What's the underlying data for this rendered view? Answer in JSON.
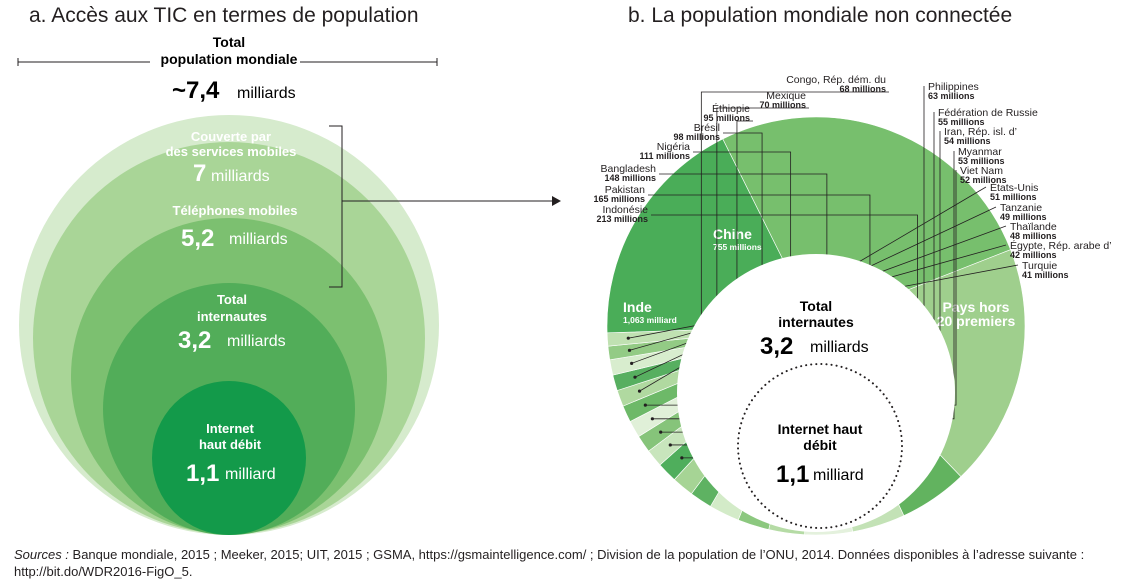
{
  "panel_a": {
    "title": "a. Accès aux TIC en termes de population",
    "total_label_1": "Total",
    "total_label_2": "population mondiale",
    "total_value": "~7,4",
    "total_unit": "milliards",
    "colors": [
      "#d6ebcd",
      "#a9d597",
      "#7cc070",
      "#52ad59",
      "#139a4a"
    ]
  },
  "panel_b": {
    "title": "b. La population mondiale non connectée",
    "center_label_1": "Total",
    "center_label_2": "internautes",
    "center_value": "3,2",
    "center_unit": "milliards",
    "inner_label_1": "Internet haut",
    "inner_label_2": "débit",
    "inner_value": "1,1",
    "inner_unit": "milliard"
  },
  "sources": {
    "label": "Sources :",
    "text": " Banque mondiale, 2015 ; Meeker, 2015; UIT, 2015 ; GSMA, https://gsmaintelligence.com/ ; Division de la population de l’ONU, 2014. Données disponibles à l’adresse suivante : http://bit.do/WDR2016-FigO_5."
  },
  "chart_data": [
    {
      "type": "nested-circles",
      "title": "a. Accès aux TIC en termes de population",
      "total": {
        "label": "Total population mondiale",
        "value": 7.4,
        "value_text": "~7,4",
        "unit": "milliards"
      },
      "levels": [
        {
          "name": "Couverte par des services mobiles",
          "value": 7,
          "value_text": "7",
          "unit": "milliards"
        },
        {
          "name": "Téléphones mobiles",
          "value": 5.2,
          "value_text": "5,2",
          "unit": "milliards"
        },
        {
          "name": "Total internautes",
          "value": 3.2,
          "value_text": "3,2",
          "unit": "milliards"
        },
        {
          "name": "Internet haut débit",
          "value": 1.1,
          "value_text": "1,1",
          "unit": "milliard"
        }
      ]
    },
    {
      "type": "pie",
      "title": "b. La population mondiale non connectée",
      "slices": [
        {
          "name": "Inde",
          "value": 1063,
          "value_text": "1,063 milliard",
          "color": "#77bf6d"
        },
        {
          "name": "Chine",
          "value": 755,
          "value_text": "755 millions",
          "color": "#9fcf8d"
        },
        {
          "name": "Indonésie",
          "value": 213,
          "value_text": "213 millions",
          "color": "#62b35f"
        },
        {
          "name": "Pakistan",
          "value": 165,
          "value_text": "165 millions",
          "color": "#c3e2b6"
        },
        {
          "name": "Bangladesh",
          "value": 148,
          "value_text": "148 millions",
          "color": "#e4f1dd"
        },
        {
          "name": "Nigéria",
          "value": 111,
          "value_text": "111 millions",
          "color": "#b5dba5"
        },
        {
          "name": "Brésil",
          "value": 98,
          "value_text": "98 millions",
          "color": "#8cc87f"
        },
        {
          "name": "Éthiopie",
          "value": 95,
          "value_text": "95 millions",
          "color": "#d3ebc8"
        },
        {
          "name": "Mexique",
          "value": 70,
          "value_text": "70 millions",
          "color": "#5eb262"
        },
        {
          "name": "Congo, Rép. dém. du",
          "value": 68,
          "value_text": "68 millions",
          "color": "#a6d495"
        },
        {
          "name": "Philippines",
          "value": 63,
          "value_text": "63 millions",
          "color": "#4fae5c"
        },
        {
          "name": "Fédération de Russie",
          "value": 55,
          "value_text": "55 millions",
          "color": "#c8e5bc"
        },
        {
          "name": "Iran, Rép. isl. d’",
          "value": 54,
          "value_text": "54 millions",
          "color": "#86c47a"
        },
        {
          "name": "Myanmar",
          "value": 53,
          "value_text": "53 millions",
          "color": "#e0f0d8"
        },
        {
          "name": "Viet Nam",
          "value": 52,
          "value_text": "52 millions",
          "color": "#6db968"
        },
        {
          "name": "États-Unis",
          "value": 51,
          "value_text": "51 millions",
          "color": "#b0d9a0"
        },
        {
          "name": "Tanzanie",
          "value": 49,
          "value_text": "49 millions",
          "color": "#57af60"
        },
        {
          "name": "Thaïlande",
          "value": 48,
          "value_text": "48 millions",
          "color": "#d8edce"
        },
        {
          "name": "Égypte, Rép. arabe d’",
          "value": 42,
          "value_text": "42 millions",
          "color": "#93cb85"
        },
        {
          "name": "Turquie",
          "value": 41,
          "value_text": "41 millions",
          "color": "#c0e1b2"
        },
        {
          "name": "Pays hors 20 premiers",
          "value": 731,
          "value_text": "",
          "color": "#4aad58"
        }
      ]
    }
  ]
}
